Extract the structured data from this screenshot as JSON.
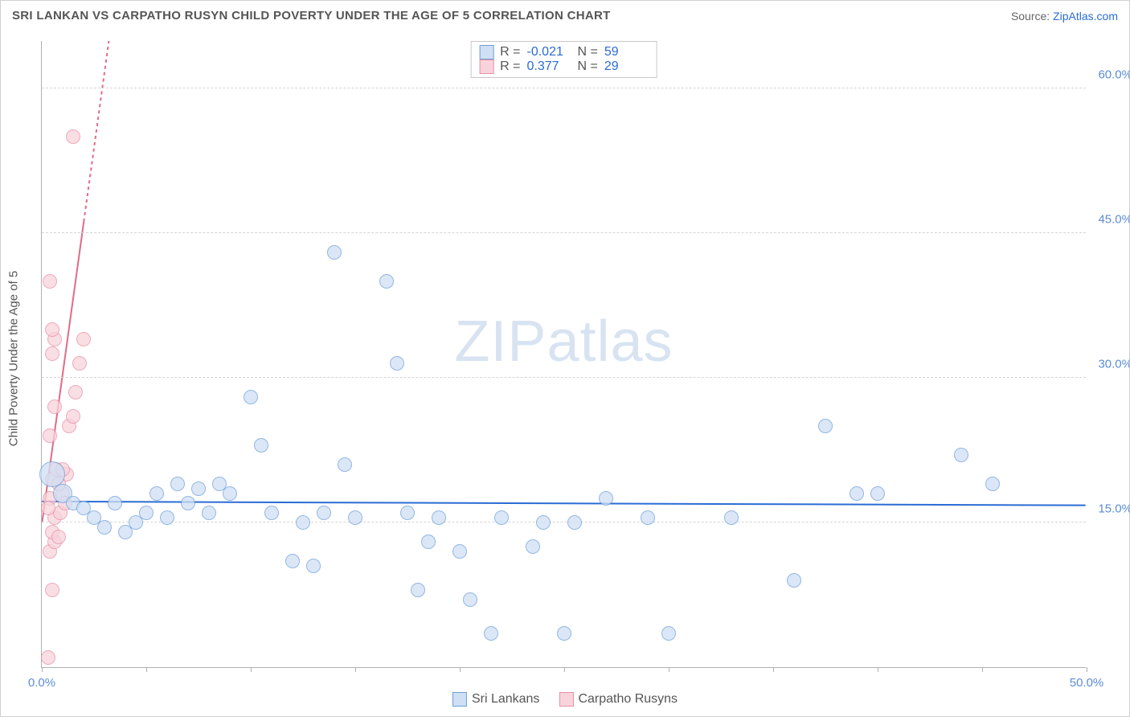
{
  "title": "SRI LANKAN VS CARPATHO RUSYN CHILD POVERTY UNDER THE AGE OF 5 CORRELATION CHART",
  "source_prefix": "Source: ",
  "source_name": "ZipAtlas.com",
  "ylabel": "Child Poverty Under the Age of 5",
  "watermark_zip": "ZIP",
  "watermark_atlas": "atlas",
  "chart": {
    "type": "scatter",
    "xlim": [
      0,
      50
    ],
    "ylim": [
      0,
      65
    ],
    "x_ticks": [
      0,
      5,
      10,
      15,
      20,
      25,
      30,
      35,
      40,
      45,
      50
    ],
    "x_tick_labels": {
      "0": "0.0%",
      "50": "50.0%"
    },
    "y_gridlines": [
      15,
      30,
      45,
      60
    ],
    "y_tick_labels": {
      "15": "15.0%",
      "30": "30.0%",
      "45": "45.0%",
      "60": "60.0%"
    },
    "grid_color": "#d5d5d5",
    "axis_color": "#b0b0b0",
    "background_color": "#ffffff",
    "label_color": "#5b8dd6",
    "marker_radius": 9,
    "marker_radius_large": 16
  },
  "series": {
    "sri_lankans": {
      "label": "Sri Lankans",
      "fill": "#cfe0f5",
      "stroke": "#6f9fd8",
      "opacity": 0.75,
      "R": "-0.021",
      "N": "59",
      "trend": {
        "x1": 0,
        "y1": 17.2,
        "x2": 50,
        "y2": 16.8,
        "color": "#2a6cd4",
        "width": 2,
        "dash": "none"
      },
      "points": [
        [
          0.5,
          20,
          16
        ],
        [
          1.0,
          18,
          12
        ],
        [
          1.5,
          17
        ],
        [
          2.0,
          16.5
        ],
        [
          2.5,
          15.5
        ],
        [
          3.0,
          14.5
        ],
        [
          3.5,
          17
        ],
        [
          4.0,
          14
        ],
        [
          4.5,
          15
        ],
        [
          5.0,
          16
        ],
        [
          5.5,
          18
        ],
        [
          6.0,
          15.5
        ],
        [
          6.5,
          19
        ],
        [
          7.0,
          17
        ],
        [
          7.5,
          18.5
        ],
        [
          8.0,
          16
        ],
        [
          8.5,
          19
        ],
        [
          9.0,
          18
        ],
        [
          10.0,
          28
        ],
        [
          10.5,
          23
        ],
        [
          11.0,
          16
        ],
        [
          12.0,
          11
        ],
        [
          12.5,
          15
        ],
        [
          13.0,
          10.5
        ],
        [
          13.5,
          16
        ],
        [
          14.0,
          43
        ],
        [
          14.5,
          21
        ],
        [
          15.0,
          15.5
        ],
        [
          16.5,
          40
        ],
        [
          17.0,
          31.5
        ],
        [
          17.5,
          16
        ],
        [
          18.0,
          8
        ],
        [
          18.5,
          13
        ],
        [
          19.0,
          15.5
        ],
        [
          20.0,
          12
        ],
        [
          20.5,
          7
        ],
        [
          21.5,
          3.5
        ],
        [
          22.0,
          15.5
        ],
        [
          23.5,
          12.5
        ],
        [
          24.0,
          15
        ],
        [
          25.0,
          3.5
        ],
        [
          25.5,
          15
        ],
        [
          27.0,
          17.5
        ],
        [
          29.0,
          15.5
        ],
        [
          30.0,
          3.5
        ],
        [
          33.0,
          15.5
        ],
        [
          36.0,
          9
        ],
        [
          37.5,
          25
        ],
        [
          39.0,
          18
        ],
        [
          40.0,
          18
        ],
        [
          44.0,
          22
        ],
        [
          45.5,
          19
        ]
      ]
    },
    "carpatho_rusyns": {
      "label": "Carpatho Rusyns",
      "fill": "#f8d3db",
      "stroke": "#e890a3",
      "opacity": 0.75,
      "R": "0.377",
      "N": "29",
      "trend": {
        "x1": 0,
        "y1": 15,
        "x2": 3.2,
        "y2": 65,
        "color": "#e06b87",
        "width": 2,
        "dash": "4 4",
        "solid_until_x": 2.0
      },
      "points": [
        [
          0.3,
          1
        ],
        [
          0.5,
          8
        ],
        [
          0.4,
          12
        ],
        [
          0.6,
          13
        ],
        [
          0.5,
          14
        ],
        [
          0.8,
          13.5
        ],
        [
          0.6,
          15.5
        ],
        [
          0.9,
          16
        ],
        [
          0.4,
          17.5
        ],
        [
          1.0,
          18
        ],
        [
          0.5,
          19.5
        ],
        [
          0.7,
          20.5
        ],
        [
          1.2,
          20
        ],
        [
          0.4,
          24
        ],
        [
          1.3,
          25
        ],
        [
          1.5,
          26
        ],
        [
          0.6,
          27
        ],
        [
          1.6,
          28.5
        ],
        [
          0.5,
          32.5
        ],
        [
          1.8,
          31.5
        ],
        [
          0.6,
          34
        ],
        [
          0.5,
          35
        ],
        [
          2.0,
          34
        ],
        [
          0.4,
          40
        ],
        [
          1.0,
          20.5
        ],
        [
          1.1,
          17
        ],
        [
          0.8,
          19
        ],
        [
          0.3,
          16.5
        ],
        [
          1.5,
          55
        ]
      ]
    }
  },
  "stats_legend": {
    "r_label": "R =",
    "n_label": "N ="
  }
}
